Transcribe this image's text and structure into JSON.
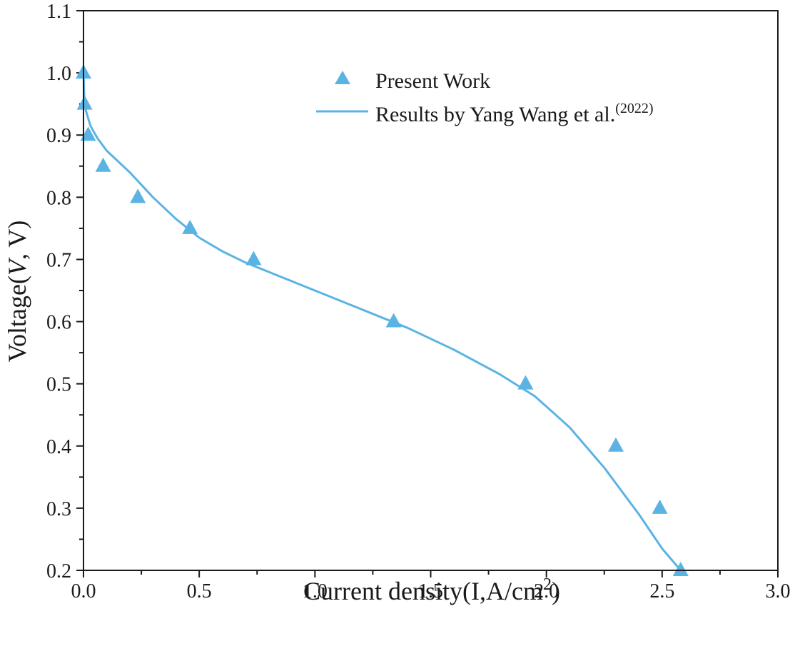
{
  "chart_data": {
    "type": "scatter+line",
    "title": "",
    "xlabel": {
      "main": "Current density(I,A/cm",
      "sup": "2",
      "end": ")"
    },
    "ylabel": {
      "prefix": "Voltage(",
      "italic": "V",
      "suffix": ", V)"
    },
    "xlim": [
      0.0,
      3.0
    ],
    "ylim": [
      0.2,
      1.1
    ],
    "xticks": [
      0.0,
      0.5,
      1.0,
      1.5,
      2.0,
      2.5,
      3.0
    ],
    "xtick_labels": [
      "0.0",
      "0.5",
      "1.0",
      "1.5",
      "2.0",
      "2.5",
      "3.0"
    ],
    "yticks": [
      0.2,
      0.3,
      0.4,
      0.5,
      0.6,
      0.7,
      0.8,
      0.9,
      1.0,
      1.1
    ],
    "ytick_labels": [
      "0.2",
      "0.3",
      "0.4",
      "0.5",
      "0.6",
      "0.7",
      "0.8",
      "0.9",
      "1.0",
      "1.1"
    ],
    "grid": false,
    "legend_position": "top-center",
    "color": "#5bb3e4",
    "series": [
      {
        "name": "Present Work",
        "kind": "scatter",
        "marker": "triangle",
        "x": [
          0.0,
          0.005,
          0.02,
          0.085,
          0.235,
          0.46,
          0.735,
          1.34,
          1.91,
          2.3,
          2.49,
          2.58
        ],
        "y": [
          1.0,
          0.95,
          0.9,
          0.85,
          0.8,
          0.75,
          0.7,
          0.6,
          0.5,
          0.4,
          0.3,
          0.2
        ]
      },
      {
        "name": "Results by Yang Wang et al.",
        "name_sup": "(2022)",
        "kind": "line",
        "x": [
          0.0,
          0.003,
          0.01,
          0.03,
          0.06,
          0.1,
          0.2,
          0.3,
          0.4,
          0.5,
          0.6,
          0.7,
          0.8,
          1.0,
          1.2,
          1.4,
          1.6,
          1.8,
          1.95,
          2.1,
          2.25,
          2.4,
          2.5,
          2.58
        ],
        "y": [
          1.0,
          0.965,
          0.94,
          0.915,
          0.895,
          0.875,
          0.84,
          0.8,
          0.765,
          0.735,
          0.713,
          0.695,
          0.68,
          0.65,
          0.62,
          0.59,
          0.555,
          0.515,
          0.48,
          0.43,
          0.365,
          0.29,
          0.235,
          0.2
        ]
      }
    ]
  }
}
